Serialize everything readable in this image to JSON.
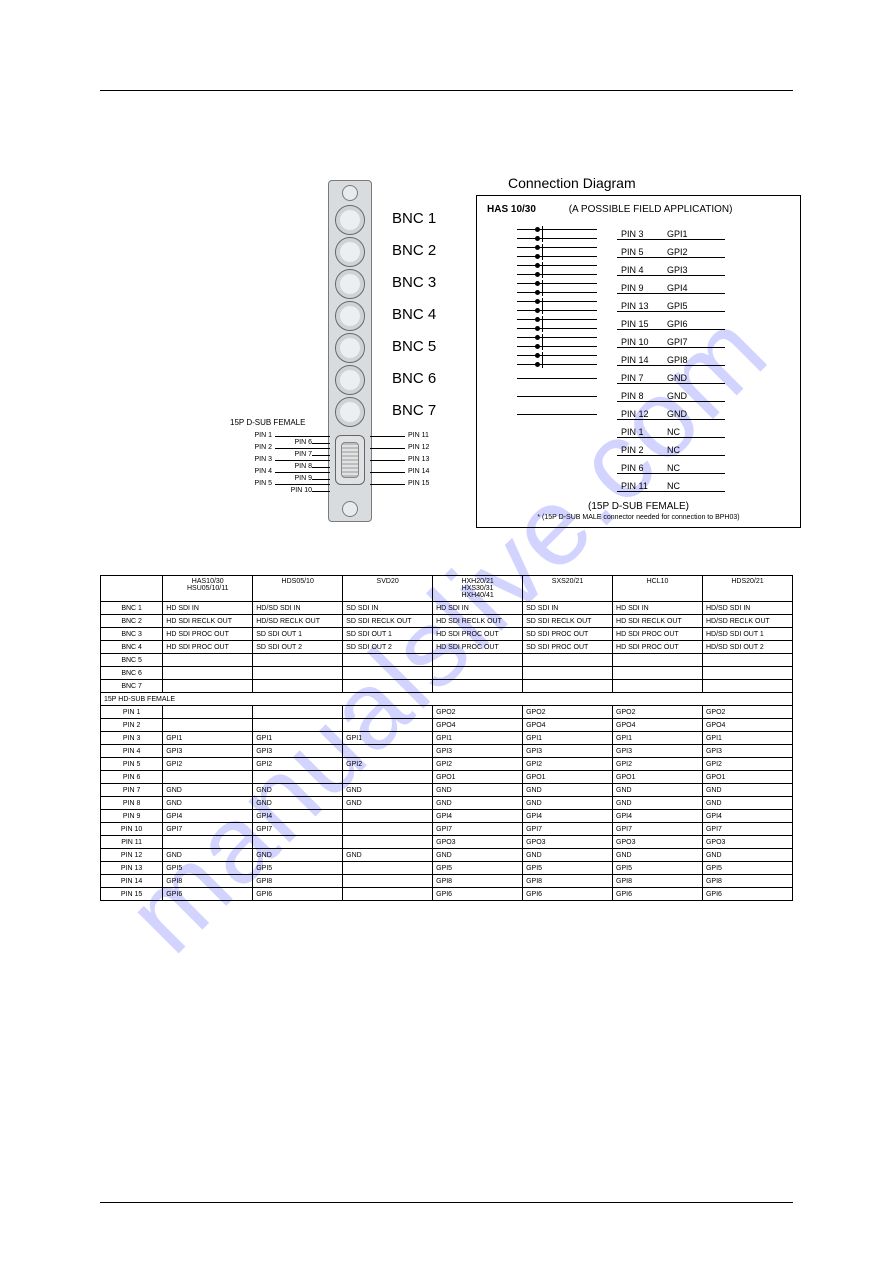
{
  "watermark": "manualslive.com",
  "backplane": {
    "dsub_title": "15P D-SUB FEMALE",
    "bnc_labels": [
      "BNC 1",
      "BNC 2",
      "BNC 3",
      "BNC 4",
      "BNC 5",
      "BNC 6",
      "BNC 7"
    ],
    "left_pins_outer": [
      "PIN 1",
      "PIN 2",
      "PIN 3",
      "PIN 4",
      "PIN 5"
    ],
    "left_pins_inner": [
      "PIN 6",
      "PIN 7",
      "PIN 8",
      "PIN 9",
      "PIN 10"
    ],
    "right_pins": [
      "PIN 11",
      "PIN 12",
      "PIN 13",
      "PIN 14",
      "PIN 15"
    ]
  },
  "conn": {
    "title": "Connection Diagram",
    "header_bold": "HAS 10/30",
    "header_rest": "(A POSSIBLE FIELD APPLICATION)",
    "rows": [
      {
        "sw": true,
        "pin": "PIN 3",
        "sig": "GPI1"
      },
      {
        "sw": true,
        "pin": "PIN 5",
        "sig": "GPI2"
      },
      {
        "sw": true,
        "pin": "PIN 4",
        "sig": "GPI3"
      },
      {
        "sw": true,
        "pin": "PIN 9",
        "sig": "GPI4"
      },
      {
        "sw": true,
        "pin": "PIN 13",
        "sig": "GPI5"
      },
      {
        "sw": true,
        "pin": "PIN 15",
        "sig": "GPI6"
      },
      {
        "sw": true,
        "pin": "PIN 10",
        "sig": "GPI7"
      },
      {
        "sw": true,
        "pin": "PIN 14",
        "sig": "GPI8"
      },
      {
        "sw": false,
        "pin": "PIN 7",
        "sig": "GND"
      },
      {
        "sw": false,
        "pin": "PIN 8",
        "sig": "GND"
      },
      {
        "sw": false,
        "pin": "PIN 12",
        "sig": "GND"
      },
      {
        "sw": null,
        "pin": "PIN 1",
        "sig": "NC"
      },
      {
        "sw": null,
        "pin": "PIN 2",
        "sig": "NC"
      },
      {
        "sw": null,
        "pin": "PIN 6",
        "sig": "NC"
      },
      {
        "sw": null,
        "pin": "PIN 11",
        "sig": "NC"
      }
    ],
    "footer": "(15P D-SUB FEMALE)",
    "note": "* (15P D-SUB MALE connector needed for connection to BPH03)"
  },
  "table": {
    "headers": [
      "",
      "HAS10/30\nHSU05/10/11",
      "HDS05/10",
      "SVD20",
      "HXH20/21\nHXS30/31\nHXH40/41",
      "SXS20/21",
      "HCL10",
      "HDS20/21"
    ],
    "section1_label": "",
    "bnc_rows": [
      [
        "BNC 1",
        "HD SDI IN",
        "HD/SD SDI IN",
        "SD SDI IN",
        "HD SDI IN",
        "SD SDI IN",
        "HD SDI IN",
        "HD/SD SDI IN"
      ],
      [
        "BNC 2",
        "HD SDI RECLK OUT",
        "HD/SD RECLK OUT",
        "SD SDI RECLK OUT",
        "HD SDI RECLK OUT",
        "SD SDI RECLK OUT",
        "HD SDI RECLK OUT",
        "HD/SD RECLK OUT"
      ],
      [
        "BNC 3",
        "HD SDI PROC OUT",
        "SD SDI OUT 1",
        "SD SDI OUT 1",
        "HD SDI PROC OUT",
        "SD SDI PROC OUT",
        "HD SDI PROC OUT",
        "HD/SD SDI OUT 1"
      ],
      [
        "BNC 4",
        "HD SDI PROC OUT",
        "SD SDI OUT 2",
        "SD SDI OUT 2",
        "HD SDI PROC OUT",
        "SD SDI PROC OUT",
        "HD SDI PROC OUT",
        "HD/SD SDI OUT 2"
      ],
      [
        "BNC 5",
        "",
        "",
        "",
        "",
        "",
        "",
        ""
      ],
      [
        "BNC 6",
        "",
        "",
        "",
        "",
        "",
        "",
        ""
      ],
      [
        "BNC 7",
        "",
        "",
        "",
        "",
        "",
        "",
        ""
      ]
    ],
    "section2_label": "15P HD-SUB FEMALE",
    "pin_rows": [
      [
        "PIN 1",
        "",
        "",
        "",
        "GPO2",
        "GPO2",
        "GPO2",
        "GPO2"
      ],
      [
        "PIN 2",
        "",
        "",
        "",
        "GPO4",
        "GPO4",
        "GPO4",
        "GPO4"
      ],
      [
        "PIN 3",
        "GPI1",
        "GPI1",
        "GPI1",
        "GPI1",
        "GPI1",
        "GPI1",
        "GPI1"
      ],
      [
        "PIN 4",
        "GPI3",
        "GPI3",
        "",
        "GPI3",
        "GPI3",
        "GPI3",
        "GPI3"
      ],
      [
        "PIN 5",
        "GPI2",
        "GPI2",
        "GPI2",
        "GPI2",
        "GPI2",
        "GPI2",
        "GPI2"
      ],
      [
        "PIN 6",
        "",
        "",
        "",
        "GPO1",
        "GPO1",
        "GPO1",
        "GPO1"
      ],
      [
        "PIN 7",
        "GND",
        "GND",
        "GND",
        "GND",
        "GND",
        "GND",
        "GND"
      ],
      [
        "PIN 8",
        "GND",
        "GND",
        "GND",
        "GND",
        "GND",
        "GND",
        "GND"
      ],
      [
        "PIN 9",
        "GPI4",
        "GPI4",
        "",
        "GPI4",
        "GPI4",
        "GPI4",
        "GPI4"
      ],
      [
        "PIN 10",
        "GPI7",
        "GPI7",
        "",
        "GPI7",
        "GPI7",
        "GPI7",
        "GPI7"
      ],
      [
        "PIN 11",
        "",
        "",
        "",
        "GPO3",
        "GPO3",
        "GPO3",
        "GPO3"
      ],
      [
        "PIN 12",
        "GND",
        "GND",
        "GND",
        "GND",
        "GND",
        "GND",
        "GND"
      ],
      [
        "PIN 13",
        "GPI5",
        "GPI5",
        "",
        "GPI5",
        "GPI5",
        "GPI5",
        "GPI5"
      ],
      [
        "PIN 14",
        "GPI8",
        "GPI8",
        "",
        "GPI8",
        "GPI8",
        "GPI8",
        "GPI8"
      ],
      [
        "PIN 15",
        "GPI6",
        "GPI6",
        "",
        "GPI6",
        "GPI6",
        "GPI6",
        "GPI6"
      ]
    ]
  },
  "colors": {
    "plate": "#d9dcdf",
    "border": "#000000",
    "watermark": "rgba(80,80,255,0.25)"
  }
}
